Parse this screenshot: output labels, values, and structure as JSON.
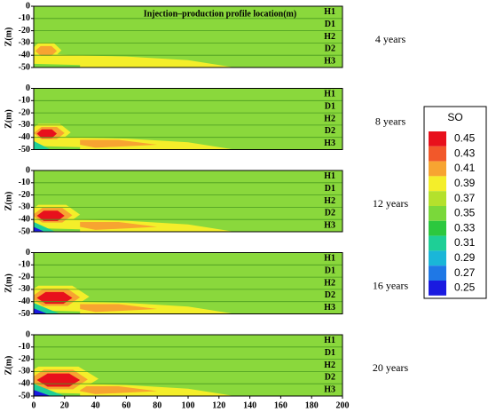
{
  "chart_data": {
    "type": "contour",
    "title": "Injection–production profile location(m)",
    "ylabel": "Z(m)",
    "xlim": [
      0,
      200
    ],
    "xticks": [
      0,
      20,
      40,
      60,
      80,
      100,
      120,
      140,
      160,
      180,
      200
    ],
    "ylim": [
      -50,
      0
    ],
    "yticks": [
      0,
      -10,
      -20,
      -30,
      -40,
      -50
    ],
    "background": "#8ad83c",
    "layers": [
      "H1",
      "D1",
      "H2",
      "D2",
      "H3"
    ],
    "panels": [
      "4 years",
      "8 years",
      "12 years",
      "16 years",
      "20 years"
    ],
    "legend": {
      "title": "SO",
      "labels": [
        0.45,
        0.43,
        0.41,
        0.39,
        0.37,
        0.35,
        0.33,
        0.31,
        0.29,
        0.27,
        0.25
      ],
      "colors": [
        "#e8101c",
        "#f2582a",
        "#f7a431",
        "#f4ee2a",
        "#b4e12c",
        "#7ad83a",
        "#2cc83e",
        "#1ecf96",
        "#1ab6d8",
        "#1f78e6",
        "#1a1ae0"
      ]
    }
  }
}
